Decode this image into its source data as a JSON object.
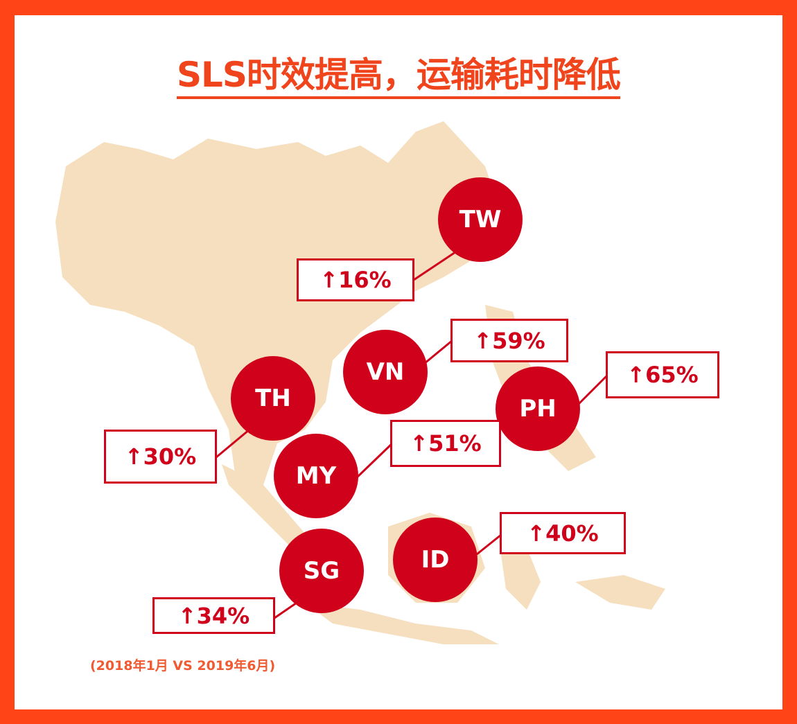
{
  "title": "SLS时效提高，运输耗时降低",
  "colors": {
    "border": "#FF4417",
    "marker": "#D0021B",
    "land": "#F5DFBF"
  },
  "markers": [
    {
      "code": "TW",
      "change": "↑16%"
    },
    {
      "code": "VN",
      "change": "↑59%"
    },
    {
      "code": "PH",
      "change": "↑65%"
    },
    {
      "code": "TH",
      "change": "↑30%"
    },
    {
      "code": "MY",
      "change": "↑51%"
    },
    {
      "code": "SG",
      "change": "↑34%"
    },
    {
      "code": "ID",
      "change": "↑40%"
    }
  ],
  "footnote": "(2018年1月 VS 2019年6月)"
}
